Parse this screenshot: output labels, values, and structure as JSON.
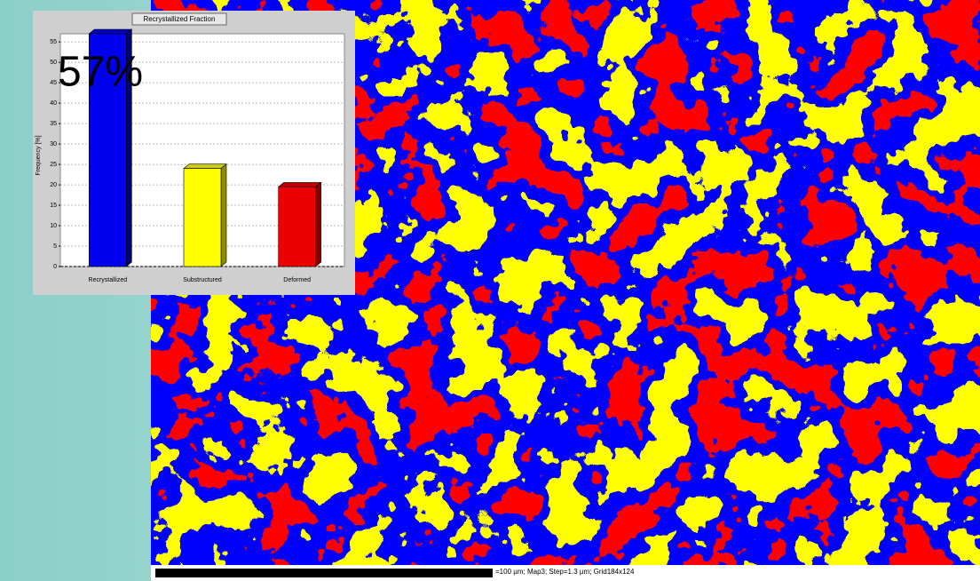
{
  "chart_data": {
    "type": "bar",
    "title": "Recrystallized Fraction",
    "y_label": "Frequency [%]",
    "categories": [
      "Recrystallized",
      "Substructured",
      "Deformed"
    ],
    "values": [
      57,
      24,
      19.5
    ],
    "colors": [
      "#0000ee",
      "#ffff00",
      "#ee0000"
    ],
    "ylim": [
      0,
      57
    ],
    "yticks": [
      0,
      5,
      10,
      15,
      20,
      25,
      30,
      35,
      40,
      45,
      50,
      55
    ],
    "grid": true,
    "annotation": "57%"
  },
  "map_caption": "=100 µm; Map3; Step=1.3 µm; Grid184x124"
}
